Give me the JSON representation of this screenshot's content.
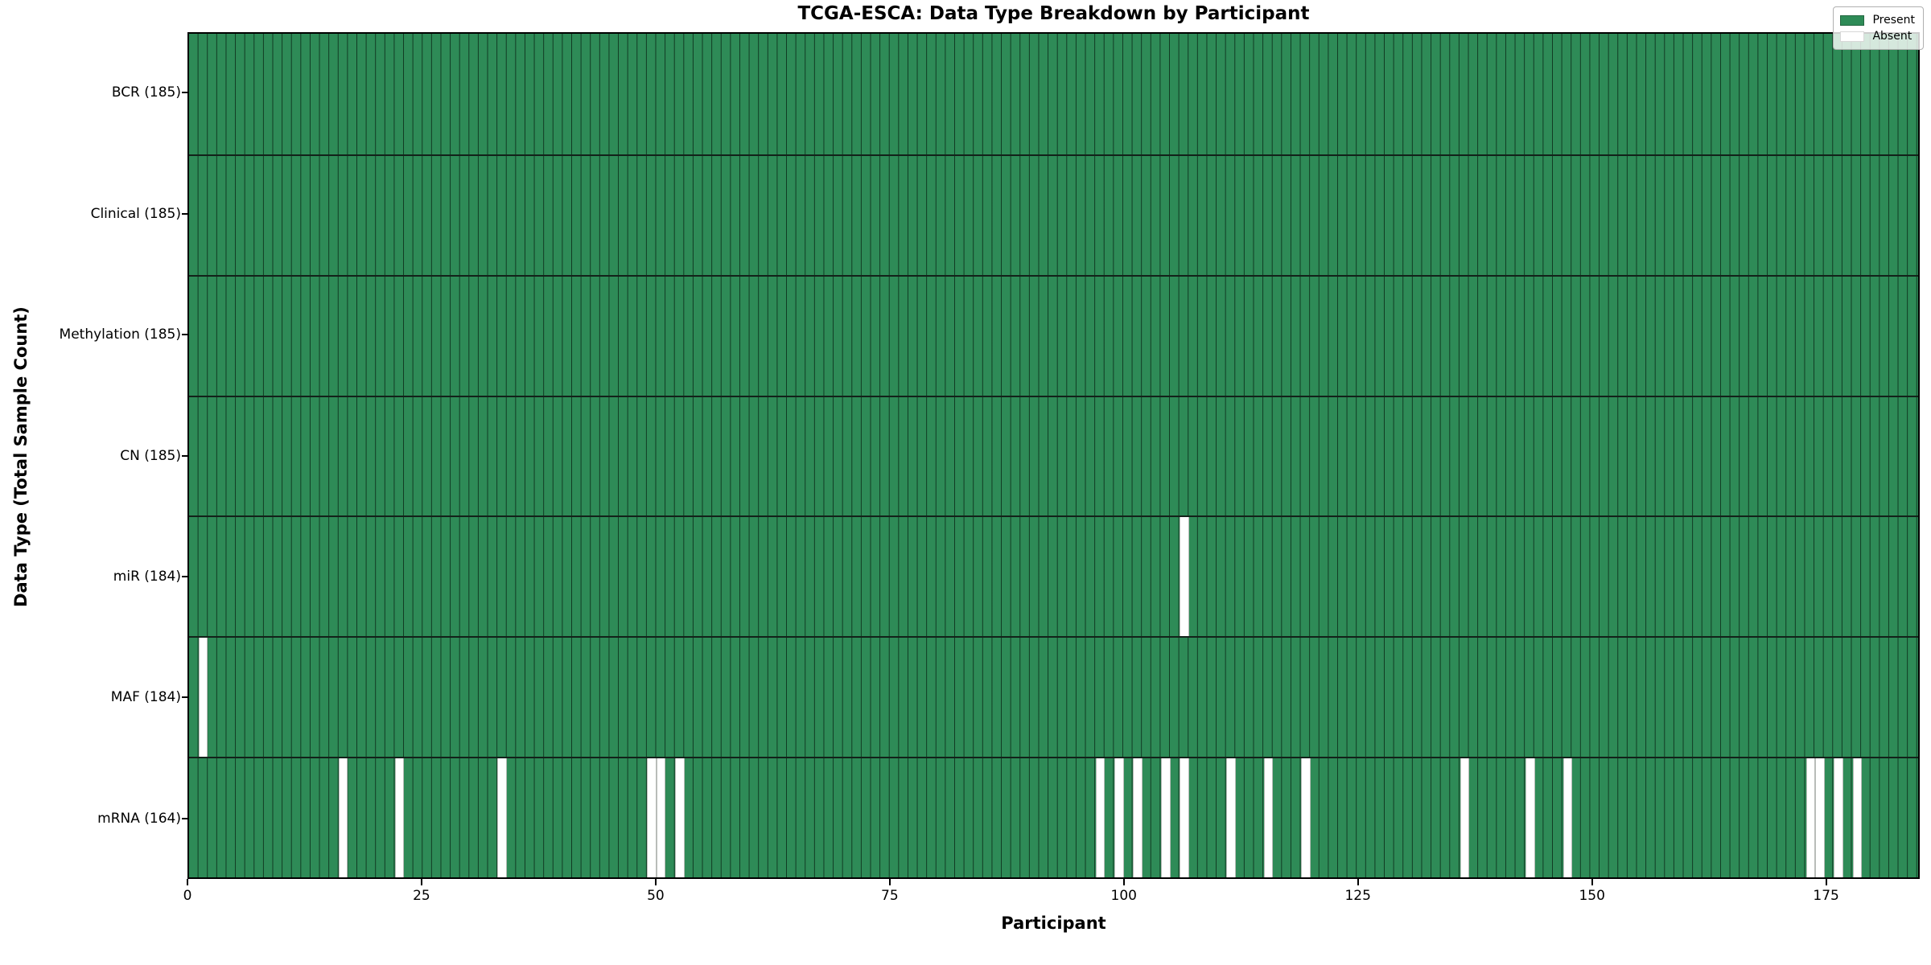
{
  "title": "TCGA-ESCA: Data Type Breakdown by Participant",
  "axes": {
    "xlabel": "Participant",
    "ylabel": "Data Type (Total Sample Count)"
  },
  "legend": {
    "items": [
      {
        "label": "Present",
        "color": "#2e8b57"
      },
      {
        "label": "Absent",
        "color": "#ffffff"
      }
    ]
  },
  "chart_data": {
    "type": "heatmap",
    "title": "TCGA-ESCA: Data Type Breakdown by Participant",
    "xlabel": "Participant",
    "ylabel": "Data Type (Total Sample Count)",
    "n_participants": 185,
    "xlim": [
      0,
      185
    ],
    "x_ticks": [
      0,
      25,
      50,
      75,
      100,
      125,
      150,
      175
    ],
    "present_color": "#2e8b57",
    "absent_color": "#ffffff",
    "legend_position": "upper right",
    "grid": true,
    "rows": [
      {
        "label": "BCR (185)",
        "data_type": "BCR",
        "total_samples": 185,
        "absent_participants": []
      },
      {
        "label": "Clinical (185)",
        "data_type": "Clinical",
        "total_samples": 185,
        "absent_participants": []
      },
      {
        "label": "Methylation (185)",
        "data_type": "Methylation",
        "total_samples": 185,
        "absent_participants": []
      },
      {
        "label": "CN (185)",
        "data_type": "CN",
        "total_samples": 185,
        "absent_participants": []
      },
      {
        "label": "miR (184)",
        "data_type": "miR",
        "total_samples": 184,
        "absent_participants": [
          106
        ]
      },
      {
        "label": "MAF (184)",
        "data_type": "MAF",
        "total_samples": 184,
        "absent_participants": [
          1
        ]
      },
      {
        "label": "mRNA (164)",
        "data_type": "mRNA",
        "total_samples": 164,
        "absent_participants": [
          16,
          22,
          33,
          49,
          50,
          52,
          97,
          99,
          101,
          104,
          106,
          111,
          115,
          119,
          136,
          143,
          147,
          173,
          174,
          176,
          178
        ]
      }
    ]
  }
}
